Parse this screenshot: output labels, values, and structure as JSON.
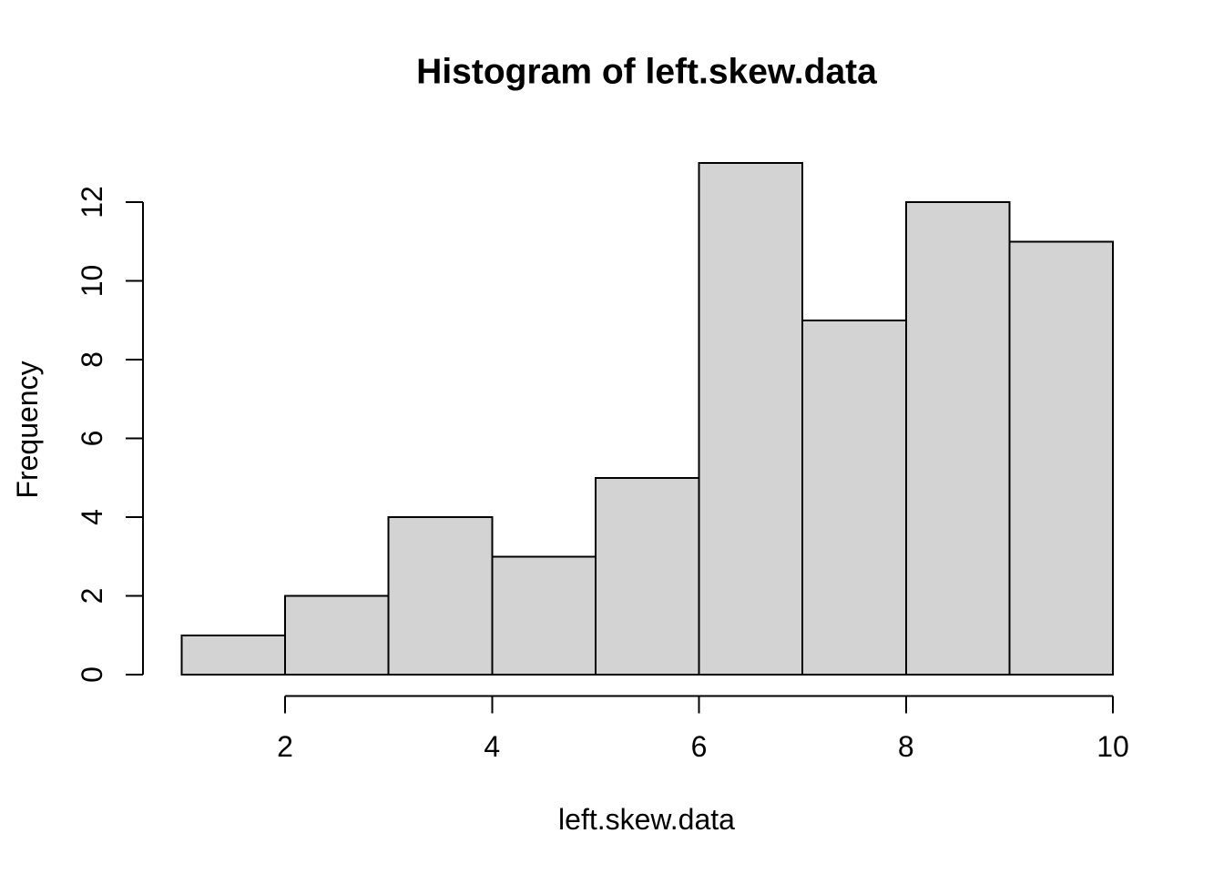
{
  "chart_data": {
    "type": "bar",
    "subtype": "histogram",
    "title": "Histogram of left.skew.data",
    "xlabel": "left.skew.data",
    "ylabel": "Frequency",
    "bin_edges": [
      1,
      2,
      3,
      4,
      5,
      6,
      7,
      8,
      9,
      10
    ],
    "counts": [
      1,
      2,
      4,
      3,
      5,
      13,
      9,
      12,
      11
    ],
    "x_ticks": [
      2,
      4,
      6,
      8,
      10
    ],
    "y_ticks": [
      0,
      2,
      4,
      6,
      8,
      10,
      12
    ],
    "xlim": [
      1,
      10
    ],
    "ylim": [
      0,
      13
    ],
    "y_axis_range": [
      0,
      12
    ],
    "grid": false,
    "legend": null,
    "colors": {
      "bar_fill": "#D3D3D3",
      "bar_stroke": "#000000",
      "axis": "#000000",
      "text": "#000000",
      "background": "#FFFFFF"
    }
  }
}
